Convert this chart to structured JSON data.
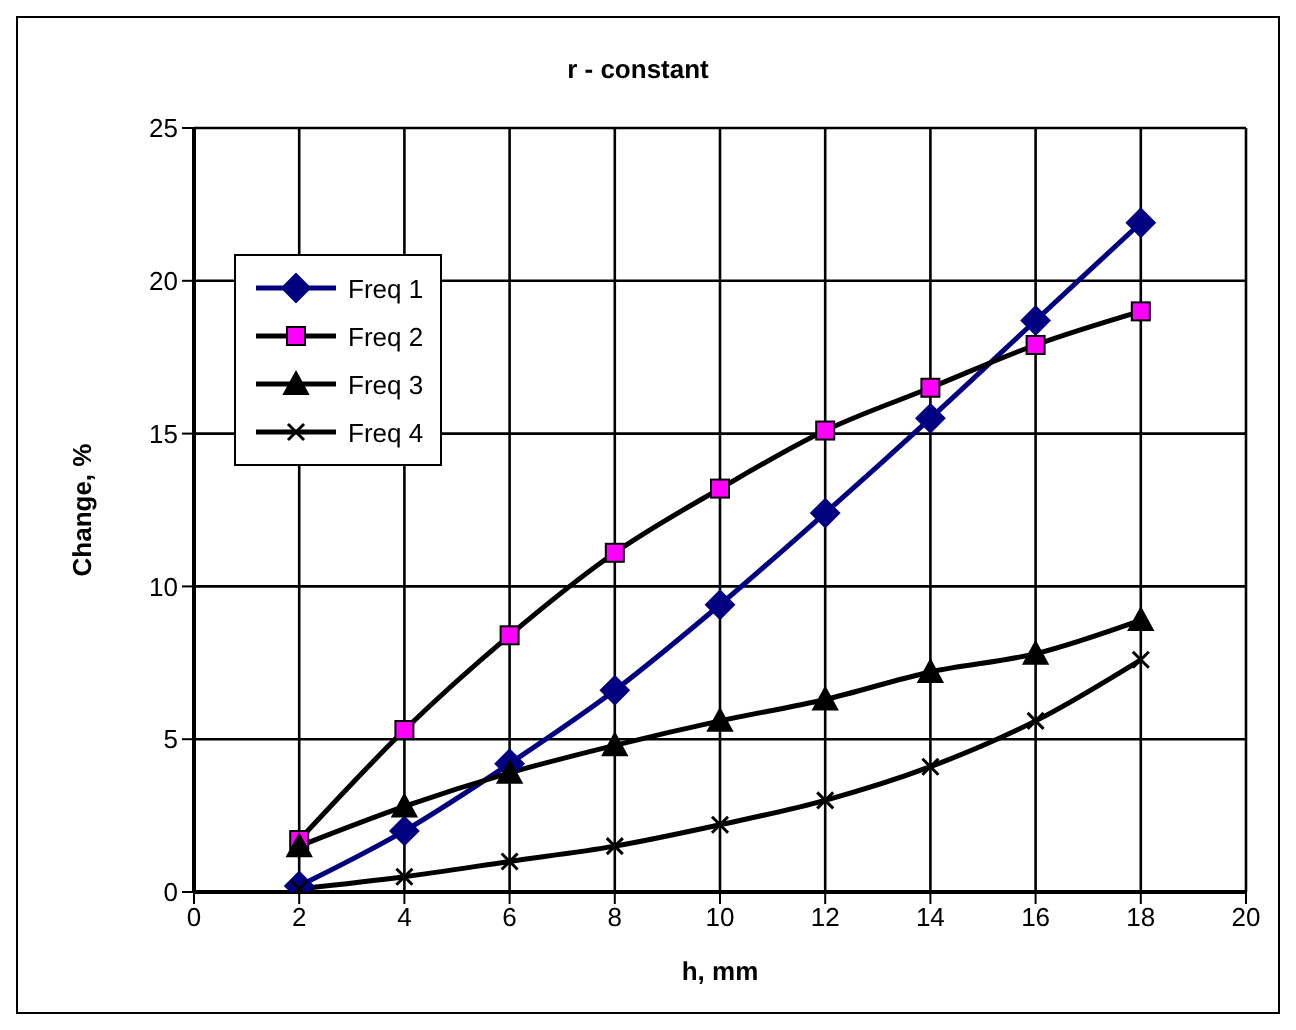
{
  "chart_data": {
    "type": "line",
    "title": "r - constant",
    "xlabel": "h, mm",
    "ylabel": "Change, %",
    "x": [
      2,
      4,
      6,
      8,
      10,
      12,
      14,
      16,
      18
    ],
    "series": [
      {
        "name": "Freq 1",
        "color": "#000080",
        "marker": "diamond",
        "values": [
          0.2,
          2.0,
          4.2,
          6.6,
          9.4,
          12.4,
          15.5,
          18.7,
          21.9
        ]
      },
      {
        "name": "Freq 2",
        "color": "#000000",
        "marker": "square",
        "colors": [
          "#ff00ff",
          "#ff00ff",
          "#ff00ff",
          "#ff00ff",
          "#ff00ff",
          "#ff00ff",
          "#ff00ff",
          "#ff00ff",
          "#ff00ff"
        ],
        "values": [
          1.7,
          5.3,
          8.4,
          11.1,
          13.2,
          15.1,
          16.5,
          17.9,
          19.0
        ]
      },
      {
        "name": "Freq 3",
        "color": "#000000",
        "marker": "triangle",
        "values": [
          1.5,
          2.8,
          3.9,
          4.8,
          5.6,
          6.3,
          7.2,
          7.8,
          8.9
        ]
      },
      {
        "name": "Freq 4",
        "color": "#000000",
        "marker": "cross",
        "values": [
          0.1,
          0.5,
          1.0,
          1.5,
          2.2,
          3.0,
          4.1,
          5.6,
          7.6
        ]
      }
    ],
    "xlim": [
      0,
      20
    ],
    "xticks": [
      0,
      2,
      4,
      6,
      8,
      10,
      12,
      14,
      16,
      18,
      20
    ],
    "ylim": [
      0,
      25
    ],
    "yticks": [
      0,
      5,
      10,
      15,
      20,
      25
    ],
    "grid": true,
    "legend": "top left",
    "line_style": "solid"
  }
}
